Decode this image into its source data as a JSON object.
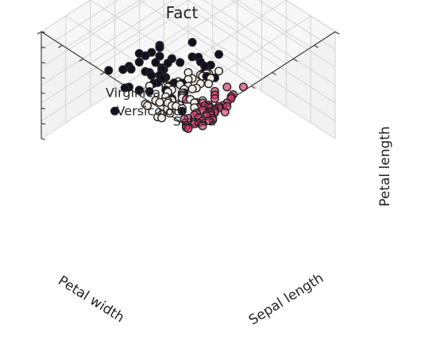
{
  "chart_data": {
    "type": "scatter",
    "title": "Fact",
    "xlabel": "Petal width",
    "ylabel": "Sepal length",
    "zlabel": "Petal length",
    "grid": true,
    "colors": {
      "Setosa": "#d1356b",
      "Versicolour": "#f3ece6",
      "Virginica": "#101020",
      "edge": "#222222"
    },
    "annotations": [
      {
        "text": "Virginica",
        "x": 2.0,
        "y": 5.8,
        "z": 5.7
      },
      {
        "text": "Versicolour",
        "x": 1.3,
        "y": 5.2,
        "z": 4.3
      },
      {
        "text": "Setosa",
        "x": 0.2,
        "y": 4.6,
        "z": 1.6
      }
    ],
    "series": [
      {
        "name": "Setosa",
        "points": [
          [
            0.2,
            5.1,
            1.4
          ],
          [
            0.2,
            4.9,
            1.4
          ],
          [
            0.2,
            4.7,
            1.3
          ],
          [
            0.2,
            4.6,
            1.5
          ],
          [
            0.2,
            5.0,
            1.4
          ],
          [
            0.4,
            5.4,
            1.7
          ],
          [
            0.3,
            4.6,
            1.4
          ],
          [
            0.2,
            5.0,
            1.5
          ],
          [
            0.2,
            4.4,
            1.4
          ],
          [
            0.1,
            4.9,
            1.5
          ],
          [
            0.2,
            5.4,
            1.5
          ],
          [
            0.2,
            4.8,
            1.6
          ],
          [
            0.1,
            4.8,
            1.4
          ],
          [
            0.1,
            4.3,
            1.1
          ],
          [
            0.2,
            5.8,
            1.2
          ],
          [
            0.4,
            5.7,
            1.5
          ],
          [
            0.4,
            5.4,
            1.3
          ],
          [
            0.3,
            5.1,
            1.4
          ],
          [
            0.3,
            5.7,
            1.7
          ],
          [
            0.3,
            5.1,
            1.5
          ],
          [
            0.2,
            5.4,
            1.7
          ],
          [
            0.4,
            5.1,
            1.5
          ],
          [
            0.2,
            4.6,
            1.0
          ],
          [
            0.5,
            5.1,
            1.7
          ],
          [
            0.2,
            4.8,
            1.9
          ],
          [
            0.2,
            5.0,
            1.6
          ],
          [
            0.4,
            5.0,
            1.6
          ],
          [
            0.2,
            5.2,
            1.5
          ],
          [
            0.2,
            5.2,
            1.4
          ],
          [
            0.2,
            4.7,
            1.6
          ],
          [
            0.2,
            4.8,
            1.6
          ],
          [
            0.4,
            5.4,
            1.5
          ],
          [
            0.1,
            5.2,
            1.5
          ],
          [
            0.2,
            5.5,
            1.4
          ],
          [
            0.2,
            4.9,
            1.5
          ],
          [
            0.2,
            5.0,
            1.2
          ],
          [
            0.2,
            5.5,
            1.3
          ],
          [
            0.1,
            4.9,
            1.4
          ],
          [
            0.2,
            4.4,
            1.3
          ],
          [
            0.2,
            5.1,
            1.5
          ],
          [
            0.3,
            5.0,
            1.3
          ],
          [
            0.3,
            4.5,
            1.3
          ],
          [
            0.2,
            4.4,
            1.3
          ],
          [
            0.6,
            5.0,
            1.6
          ],
          [
            0.4,
            5.1,
            1.9
          ],
          [
            0.3,
            4.8,
            1.4
          ],
          [
            0.2,
            5.1,
            1.6
          ],
          [
            0.2,
            4.6,
            1.4
          ],
          [
            0.2,
            5.3,
            1.5
          ],
          [
            0.2,
            5.0,
            1.4
          ]
        ]
      },
      {
        "name": "Versicolour",
        "points": [
          [
            1.4,
            7.0,
            4.7
          ],
          [
            1.5,
            6.4,
            4.5
          ],
          [
            1.5,
            6.9,
            4.9
          ],
          [
            1.3,
            5.5,
            4.0
          ],
          [
            1.5,
            6.5,
            4.6
          ],
          [
            1.3,
            5.7,
            4.5
          ],
          [
            1.6,
            6.3,
            4.7
          ],
          [
            1.0,
            4.9,
            3.3
          ],
          [
            1.3,
            6.6,
            4.6
          ],
          [
            1.4,
            5.2,
            3.9
          ],
          [
            1.0,
            5.0,
            3.5
          ],
          [
            1.5,
            5.9,
            4.2
          ],
          [
            1.0,
            6.0,
            4.0
          ],
          [
            1.4,
            6.1,
            4.7
          ],
          [
            1.3,
            5.6,
            3.6
          ],
          [
            1.4,
            6.7,
            4.4
          ],
          [
            1.5,
            5.6,
            4.5
          ],
          [
            1.0,
            5.8,
            4.1
          ],
          [
            1.5,
            6.2,
            4.5
          ],
          [
            1.1,
            5.6,
            3.9
          ],
          [
            1.8,
            5.9,
            4.8
          ],
          [
            1.3,
            6.1,
            4.0
          ],
          [
            1.5,
            6.3,
            4.9
          ],
          [
            1.2,
            6.1,
            4.7
          ],
          [
            1.3,
            6.4,
            4.3
          ],
          [
            1.4,
            6.6,
            4.4
          ],
          [
            1.4,
            6.8,
            4.8
          ],
          [
            1.7,
            6.7,
            5.0
          ],
          [
            1.5,
            6.0,
            4.5
          ],
          [
            1.0,
            5.7,
            3.5
          ],
          [
            1.1,
            5.5,
            3.8
          ],
          [
            1.0,
            5.5,
            3.7
          ],
          [
            1.2,
            5.8,
            3.9
          ],
          [
            1.6,
            6.0,
            5.1
          ],
          [
            1.5,
            5.4,
            4.5
          ],
          [
            1.6,
            6.0,
            4.5
          ],
          [
            1.5,
            6.7,
            4.7
          ],
          [
            1.3,
            6.3,
            4.4
          ],
          [
            1.3,
            5.6,
            4.1
          ],
          [
            1.3,
            5.5,
            4.0
          ],
          [
            1.2,
            5.5,
            4.4
          ],
          [
            1.4,
            6.1,
            4.6
          ],
          [
            1.2,
            5.8,
            4.0
          ],
          [
            1.0,
            5.0,
            3.3
          ],
          [
            1.3,
            5.6,
            4.2
          ],
          [
            1.2,
            5.7,
            4.2
          ],
          [
            1.3,
            5.7,
            4.2
          ],
          [
            1.3,
            6.2,
            4.3
          ],
          [
            1.1,
            5.1,
            3.0
          ],
          [
            1.3,
            5.7,
            4.1
          ]
        ]
      },
      {
        "name": "Virginica",
        "points": [
          [
            2.5,
            6.3,
            6.0
          ],
          [
            1.9,
            5.8,
            5.1
          ],
          [
            2.1,
            7.1,
            5.9
          ],
          [
            1.8,
            6.3,
            5.6
          ],
          [
            2.2,
            6.5,
            5.8
          ],
          [
            2.1,
            7.6,
            6.6
          ],
          [
            1.7,
            4.9,
            4.5
          ],
          [
            1.8,
            7.3,
            6.3
          ],
          [
            1.8,
            6.7,
            5.8
          ],
          [
            2.5,
            7.2,
            6.1
          ],
          [
            2.0,
            6.5,
            5.1
          ],
          [
            1.9,
            6.4,
            5.3
          ],
          [
            2.1,
            6.8,
            5.5
          ],
          [
            2.0,
            5.7,
            5.0
          ],
          [
            2.4,
            5.8,
            5.1
          ],
          [
            2.3,
            6.4,
            5.3
          ],
          [
            1.8,
            6.5,
            5.5
          ],
          [
            2.2,
            7.7,
            6.7
          ],
          [
            2.3,
            7.7,
            6.9
          ],
          [
            1.5,
            6.0,
            5.0
          ],
          [
            2.3,
            6.9,
            5.7
          ],
          [
            2.0,
            5.6,
            4.9
          ],
          [
            2.0,
            7.7,
            6.7
          ],
          [
            1.8,
            6.3,
            4.9
          ],
          [
            2.1,
            6.7,
            5.7
          ],
          [
            1.8,
            7.2,
            6.0
          ],
          [
            1.8,
            6.2,
            4.8
          ],
          [
            1.8,
            6.1,
            4.9
          ],
          [
            2.1,
            6.4,
            5.6
          ],
          [
            1.6,
            7.2,
            5.8
          ],
          [
            1.9,
            7.4,
            6.1
          ],
          [
            2.0,
            7.9,
            6.4
          ],
          [
            2.2,
            6.4,
            5.6
          ],
          [
            1.5,
            6.3,
            5.1
          ],
          [
            1.4,
            6.1,
            5.6
          ],
          [
            2.3,
            7.7,
            6.1
          ],
          [
            2.4,
            6.3,
            5.6
          ],
          [
            1.8,
            6.4,
            5.5
          ],
          [
            1.8,
            6.0,
            4.8
          ],
          [
            2.1,
            6.9,
            5.4
          ],
          [
            2.4,
            6.7,
            5.6
          ],
          [
            2.3,
            6.9,
            5.1
          ],
          [
            1.9,
            5.8,
            5.1
          ],
          [
            2.3,
            6.8,
            5.9
          ],
          [
            2.5,
            6.7,
            5.7
          ],
          [
            2.3,
            6.7,
            5.2
          ],
          [
            1.9,
            6.3,
            5.0
          ],
          [
            2.0,
            6.5,
            5.2
          ],
          [
            2.3,
            6.2,
            5.4
          ],
          [
            1.8,
            5.9,
            5.1
          ]
        ]
      }
    ]
  }
}
